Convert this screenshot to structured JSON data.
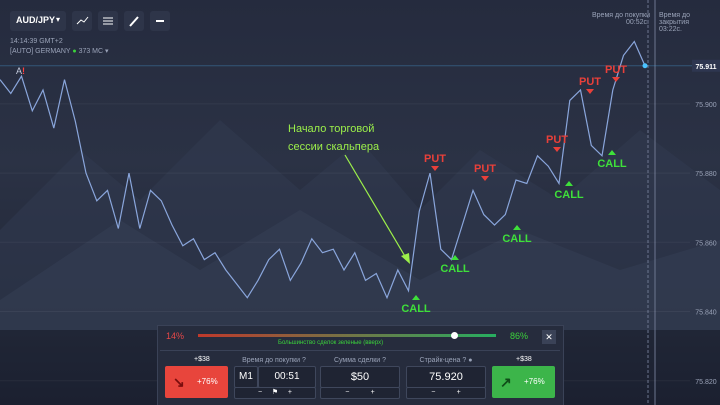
{
  "toolbar": {
    "symbol": "AUD/JPY"
  },
  "status": {
    "time": "14:14:39 GMT+2",
    "server": "[AUTO] GERMANY",
    "ping": "373 МС"
  },
  "marker": {
    "label": "A",
    "alert": "!"
  },
  "timers": {
    "buy_label": "Время до покупки",
    "buy_value": "00:52с.",
    "close_label": "Время до закрытия",
    "close_value": "03:22с."
  },
  "price_chart": {
    "type": "line",
    "color": "#8aa6dc",
    "ylim": [
      75.813,
      75.93
    ],
    "yticks": [
      {
        "value": 75.9,
        "label": "75.900"
      },
      {
        "value": 75.88,
        "label": "75.880"
      },
      {
        "value": 75.86,
        "label": "75.860"
      },
      {
        "value": 75.84,
        "label": "75.840"
      },
      {
        "value": 75.82,
        "label": "75.820"
      }
    ],
    "current_price": {
      "value": 75.911,
      "label": "75.911"
    },
    "values": [
      75.907,
      75.903,
      75.908,
      75.898,
      75.904,
      75.893,
      75.907,
      75.895,
      75.88,
      75.872,
      75.875,
      75.864,
      75.88,
      75.864,
      75.875,
      75.872,
      75.865,
      75.859,
      75.861,
      75.855,
      75.857,
      75.852,
      75.848,
      75.844,
      75.849,
      75.855,
      75.858,
      75.849,
      75.854,
      75.861,
      75.857,
      75.858,
      75.852,
      75.857,
      75.849,
      75.851,
      75.844,
      75.852,
      75.846,
      75.869,
      75.88,
      75.858,
      75.855,
      75.865,
      75.875,
      75.868,
      75.865,
      75.868,
      75.878,
      75.877,
      75.885,
      75.882,
      75.877,
      75.901,
      75.904,
      75.888,
      75.885,
      75.904,
      75.914,
      75.918,
      75.911
    ]
  },
  "annotation": {
    "lines": [
      "Начало торговой",
      "сессии скальпера"
    ]
  },
  "signals": [
    {
      "label": "PUT"
    },
    {
      "label": "PUT"
    },
    {
      "label": "PUT"
    },
    {
      "label": "PUT"
    },
    {
      "label": "PUT"
    },
    {
      "label": "CALL"
    },
    {
      "label": "CALL"
    },
    {
      "label": "CALL"
    },
    {
      "label": "CALL"
    },
    {
      "label": "CALL"
    }
  ],
  "sentiment": {
    "down": {
      "value": 14,
      "label": "14%"
    },
    "up": {
      "value": 86,
      "label": "86%"
    },
    "caption": "Большинство сделок зеленые (вверх)"
  },
  "trade": {
    "sell_payout": "+$38",
    "sell_percent": "+76%",
    "time_label": "Время до покупки",
    "period": "M1",
    "time_value": "00:51",
    "amount_label": "Сумма сделки",
    "amount": "$50",
    "strike_label": "Страйк-цена",
    "strike": "75.920",
    "buy_payout": "+$38",
    "buy_percent": "+76%"
  }
}
